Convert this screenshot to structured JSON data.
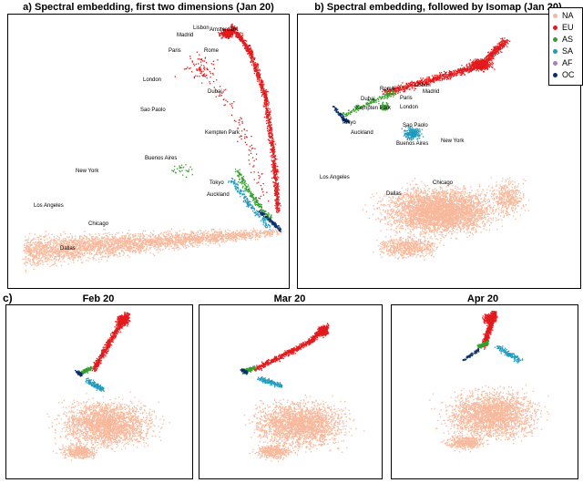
{
  "chart_data": [
    {
      "type": "scatter",
      "id": "a",
      "title": "a) Spectral embedding, first two dimensions (Jan 20)",
      "cities": [
        "Lisbon",
        "Amsterdam",
        "Madrid",
        "Paris",
        "Rome",
        "London",
        "Dubai",
        "Sao Paolo",
        "Kempten Park",
        "Buenos Aires",
        "Tokyo",
        "Auckland",
        "New York",
        "Los Angeles",
        "Chicago",
        "Dallas"
      ],
      "regions": [
        "NA",
        "EU",
        "AS",
        "SA",
        "AF",
        "OC"
      ]
    },
    {
      "type": "scatter",
      "id": "b",
      "title": "b) Spectral embedding, followed by Isomap (Jan 20)",
      "cities": [
        "Lisbon",
        "Madrid",
        "Paris",
        "Rome",
        "London",
        "Dubai",
        "Kempten Park",
        "Tokyo",
        "Auckland",
        "Sao Paolo",
        "Buenos Aires",
        "New York",
        "Los Angeles",
        "Dallas",
        "Chicago"
      ],
      "regions": [
        "NA",
        "EU",
        "AS",
        "SA",
        "AF",
        "OC"
      ]
    },
    {
      "type": "scatter",
      "id": "c1",
      "title": "Feb 20",
      "regions": [
        "NA",
        "EU",
        "AS",
        "SA",
        "AF",
        "OC"
      ]
    },
    {
      "type": "scatter",
      "id": "c2",
      "title": "Mar 20",
      "regions": [
        "NA",
        "EU",
        "AS",
        "SA",
        "AF",
        "OC"
      ]
    },
    {
      "type": "scatter",
      "id": "c3",
      "title": "Apr 20",
      "regions": [
        "NA",
        "EU",
        "AS",
        "SA",
        "AF",
        "OC"
      ]
    }
  ],
  "section_c_label": "c)",
  "legend": [
    {
      "label": "NA",
      "color": "#f7b89c"
    },
    {
      "label": "EU",
      "color": "#e31a1c"
    },
    {
      "label": "AS",
      "color": "#33a02c"
    },
    {
      "label": "SA",
      "color": "#1f9bbf"
    },
    {
      "label": "AF",
      "color": "#b07cc6"
    },
    {
      "label": "OC",
      "color": "#08306b"
    }
  ]
}
